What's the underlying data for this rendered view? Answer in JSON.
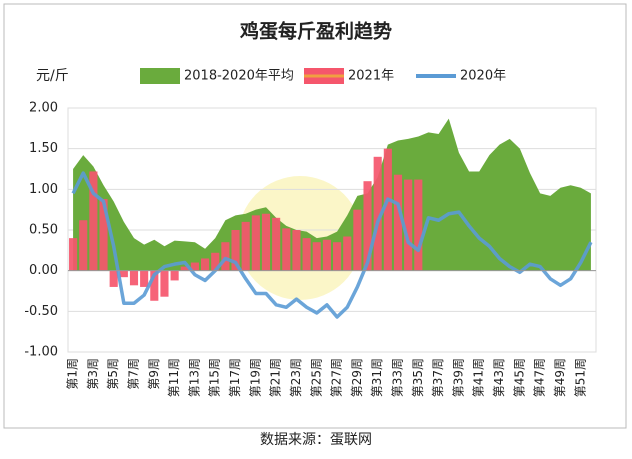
{
  "chart_data": {
    "type": "combo",
    "title": "鸡蛋每斤盈利趋势",
    "y_label": "元/斤",
    "source": "数据来源：蛋联网",
    "categories": [
      "第1周",
      null,
      "第3周",
      null,
      "第5周",
      null,
      "第7周",
      null,
      "第9周",
      null,
      "第11周",
      null,
      "第13周",
      null,
      "第15周",
      null,
      "第17周",
      null,
      "第19周",
      null,
      "第21周",
      null,
      "第23周",
      null,
      "第25周",
      null,
      "第27周",
      null,
      "第29周",
      null,
      "第31周",
      null,
      "第33周",
      null,
      "第35周",
      null,
      "第37周",
      null,
      "第39周",
      null,
      "第41周",
      null,
      "第43周",
      null,
      "第45周",
      null,
      "第47周",
      null,
      "第49周",
      null,
      "第51周",
      null
    ],
    "ylim": [
      -1,
      2
    ],
    "yticks": [
      {
        "value": 2,
        "label": "2.00"
      },
      {
        "value": 1.5,
        "label": "1.50"
      },
      {
        "value": 1,
        "label": "1.00"
      },
      {
        "value": 0.5,
        "label": "0.50"
      },
      {
        "value": 0,
        "label": "0.00"
      },
      {
        "value": -0.5,
        "label": "-0.50"
      },
      {
        "value": -1,
        "label": "-1.00"
      }
    ],
    "grid": true,
    "legend": "top",
    "series": [
      {
        "name": "2018-2020年平均",
        "type": "area",
        "color": "#6aab3d",
        "values": [
          1.25,
          1.42,
          1.28,
          1.05,
          0.85,
          0.6,
          0.4,
          0.32,
          0.38,
          0.3,
          0.37,
          0.36,
          0.35,
          0.27,
          0.4,
          0.62,
          0.68,
          0.7,
          0.75,
          0.78,
          0.65,
          0.55,
          0.5,
          0.48,
          0.4,
          0.42,
          0.48,
          0.68,
          0.92,
          0.95,
          1.15,
          1.55,
          1.6,
          1.62,
          1.65,
          1.7,
          1.68,
          1.87,
          1.45,
          1.22,
          1.22,
          1.42,
          1.55,
          1.62,
          1.5,
          1.2,
          0.95,
          0.92,
          1.02,
          1.05,
          1.02,
          0.95
        ]
      },
      {
        "name": "2021年",
        "type": "bar",
        "color": "#f5566c",
        "values": [
          0.4,
          0.62,
          1.22,
          0.88,
          -0.2,
          -0.08,
          -0.18,
          -0.2,
          -0.37,
          -0.32,
          -0.12,
          0.05,
          0.1,
          0.15,
          0.22,
          0.35,
          0.5,
          0.6,
          0.68,
          0.7,
          0.65,
          0.52,
          0.5,
          0.4,
          0.35,
          0.38,
          0.35,
          0.42,
          0.75,
          1.1,
          1.4,
          1.5,
          1.18,
          1.12,
          1.12,
          null,
          null,
          null,
          null,
          null,
          null,
          null,
          null,
          null,
          null,
          null,
          null,
          null,
          null,
          null,
          null,
          null
        ]
      },
      {
        "name": "2020年",
        "type": "line",
        "color": "#5b9bd5",
        "values": [
          0.95,
          1.2,
          0.95,
          0.85,
          0.3,
          -0.4,
          -0.4,
          -0.3,
          -0.05,
          0.05,
          0.08,
          0.1,
          -0.05,
          -0.12,
          0,
          0.15,
          0.1,
          -0.1,
          -0.28,
          -0.28,
          -0.42,
          -0.45,
          -0.35,
          -0.45,
          -0.52,
          -0.42,
          -0.57,
          -0.45,
          -0.2,
          0.1,
          0.6,
          0.88,
          0.82,
          0.35,
          0.25,
          0.65,
          0.62,
          0.7,
          0.72,
          0.55,
          0.4,
          0.3,
          0.15,
          0.05,
          -0.02,
          0.08,
          0.05,
          -0.1,
          -0.18,
          -0.1,
          0.1,
          0.35
        ]
      }
    ]
  }
}
